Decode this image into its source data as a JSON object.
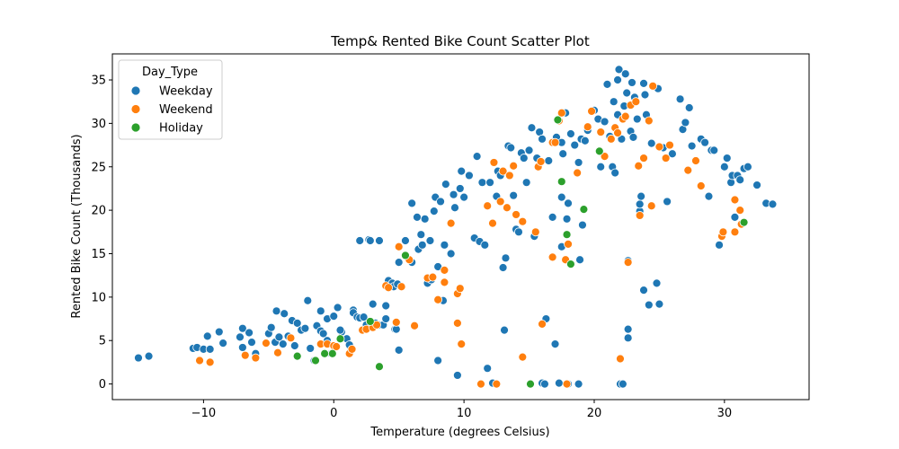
{
  "chart_data": {
    "type": "scatter",
    "title": "Temp& Rented Bike Count Scatter Plot",
    "xlabel": "Temperature (degrees Celsius)",
    "ylabel": "Rented Bike Count (Thousands)",
    "xlim": [
      -17,
      36.5
    ],
    "ylim": [
      -1.8,
      38
    ],
    "xticks": [
      -10,
      0,
      10,
      20,
      30
    ],
    "yticks": [
      0,
      5,
      10,
      15,
      20,
      25,
      30,
      35
    ],
    "grid": false,
    "legend": {
      "title": "Day_Type",
      "placement": "top-left"
    },
    "series": [
      {
        "name": "Weekday",
        "color": "#1f77b4",
        "points": [
          [
            -15,
            3
          ],
          [
            -14.2,
            3.2
          ],
          [
            -10.8,
            4.1
          ],
          [
            -10.5,
            4.2
          ],
          [
            -10,
            4
          ],
          [
            -9.7,
            5.5
          ],
          [
            -9.5,
            4
          ],
          [
            -8.8,
            6
          ],
          [
            -8.5,
            4.7
          ],
          [
            -7.2,
            5.4
          ],
          [
            -7,
            6.4
          ],
          [
            -7,
            4.2
          ],
          [
            -6.5,
            5.9
          ],
          [
            -6.3,
            4.8
          ],
          [
            -6,
            3.5
          ],
          [
            -5,
            5.8
          ],
          [
            -4.8,
            6.5
          ],
          [
            -4.5,
            4.8
          ],
          [
            -4.4,
            8.4
          ],
          [
            -4.2,
            5.4
          ],
          [
            -3.9,
            4.6
          ],
          [
            -3.8,
            8.1
          ],
          [
            -3.5,
            5.5
          ],
          [
            -3.2,
            7.3
          ],
          [
            -3,
            4.4
          ],
          [
            -2.8,
            7
          ],
          [
            -2.5,
            6.2
          ],
          [
            -2.2,
            6.4
          ],
          [
            -2,
            9.6
          ],
          [
            -1.8,
            4.1
          ],
          [
            -1.5,
            2.7
          ],
          [
            -1.3,
            6.7
          ],
          [
            -1,
            8.4
          ],
          [
            -1,
            6.1
          ],
          [
            -0.8,
            5.8
          ],
          [
            -0.5,
            5
          ],
          [
            -0.5,
            7.5
          ],
          [
            -0.2,
            3.5
          ],
          [
            0,
            7.8
          ],
          [
            0.3,
            8.8
          ],
          [
            0.6,
            6
          ],
          [
            0.5,
            6.2
          ],
          [
            1,
            5.2
          ],
          [
            1.2,
            4.5
          ],
          [
            1.5,
            8.5
          ],
          [
            1.5,
            8.2
          ],
          [
            1.8,
            7.7
          ],
          [
            2,
            7.6
          ],
          [
            2,
            16.5
          ],
          [
            2.3,
            7.7
          ],
          [
            2.5,
            6.8
          ],
          [
            2.7,
            16.6
          ],
          [
            2.8,
            16.5
          ],
          [
            3,
            9.2
          ],
          [
            3.2,
            7
          ],
          [
            3.5,
            16.5
          ],
          [
            3.5,
            6.8
          ],
          [
            3.8,
            6.8
          ],
          [
            4,
            9
          ],
          [
            4,
            7.5
          ],
          [
            4.2,
            11.9
          ],
          [
            4.3,
            11.2
          ],
          [
            4.5,
            11.6
          ],
          [
            4.6,
            11.2
          ],
          [
            4.7,
            6.3
          ],
          [
            4.8,
            6.3
          ],
          [
            4.9,
            11.5
          ],
          [
            5,
            3.9
          ],
          [
            5,
            14
          ],
          [
            5.5,
            16.5
          ],
          [
            6,
            20.8
          ],
          [
            6,
            14
          ],
          [
            6.5,
            15.5
          ],
          [
            6.4,
            19.2
          ],
          [
            6.7,
            17.2
          ],
          [
            6.8,
            16
          ],
          [
            7,
            19
          ],
          [
            7.2,
            11.6
          ],
          [
            7.4,
            16.5
          ],
          [
            7.5,
            12
          ],
          [
            7.7,
            19.9
          ],
          [
            7.8,
            21.5
          ],
          [
            8,
            13.5
          ],
          [
            8,
            2.7
          ],
          [
            8.2,
            21
          ],
          [
            8.4,
            9.6
          ],
          [
            8.5,
            16
          ],
          [
            8.6,
            23
          ],
          [
            9,
            15
          ],
          [
            9.2,
            21.8
          ],
          [
            9.3,
            20.3
          ],
          [
            9.5,
            1
          ],
          [
            9.7,
            22.5
          ],
          [
            9.8,
            24.5
          ],
          [
            10,
            21.5
          ],
          [
            10.4,
            24
          ],
          [
            10.8,
            16.8
          ],
          [
            11,
            26.2
          ],
          [
            11.2,
            16.4
          ],
          [
            11.4,
            23.2
          ],
          [
            11.6,
            16
          ],
          [
            11.8,
            1.8
          ],
          [
            12,
            23.2
          ],
          [
            12.2,
            0.1
          ],
          [
            12.5,
            21.6
          ],
          [
            12.6,
            24.5
          ],
          [
            12.8,
            24
          ],
          [
            13,
            13.4
          ],
          [
            13.1,
            6.2
          ],
          [
            13.2,
            14.5
          ],
          [
            13.4,
            27.4
          ],
          [
            13.6,
            27.2
          ],
          [
            13.8,
            21.7
          ],
          [
            14,
            17.8
          ],
          [
            14.2,
            17.5
          ],
          [
            14.4,
            26.6
          ],
          [
            14.6,
            26
          ],
          [
            14.8,
            23.2
          ],
          [
            15,
            26.9
          ],
          [
            15.2,
            29.5
          ],
          [
            15.4,
            17
          ],
          [
            15.6,
            26
          ],
          [
            15.8,
            29
          ],
          [
            16,
            28.2
          ],
          [
            16,
            0.1
          ],
          [
            16.2,
            0
          ],
          [
            16.3,
            7.5
          ],
          [
            16.5,
            25.7
          ],
          [
            16.8,
            19.2
          ],
          [
            17,
            4.6
          ],
          [
            17.1,
            28.4
          ],
          [
            17.3,
            0.1
          ],
          [
            17.5,
            21.5
          ],
          [
            17.5,
            15.8
          ],
          [
            17.5,
            27.8
          ],
          [
            17.6,
            26.5
          ],
          [
            17.8,
            31.2
          ],
          [
            17.9,
            19
          ],
          [
            18,
            20.8
          ],
          [
            18,
            0
          ],
          [
            18.2,
            28.8
          ],
          [
            18.5,
            27.5
          ],
          [
            18.8,
            0
          ],
          [
            18.8,
            25.5
          ],
          [
            18.9,
            14.3
          ],
          [
            19.1,
            18.3
          ],
          [
            19,
            28.2
          ],
          [
            19.3,
            28
          ],
          [
            19.5,
            29.2
          ],
          [
            20,
            31.5
          ],
          [
            20.3,
            30.5
          ],
          [
            20.5,
            25
          ],
          [
            20.8,
            30.2
          ],
          [
            21,
            34.5
          ],
          [
            21.2,
            28.5
          ],
          [
            21.4,
            25
          ],
          [
            21.5,
            32.5
          ],
          [
            21.6,
            24.3
          ],
          [
            21.8,
            35
          ],
          [
            21.8,
            31
          ],
          [
            21.9,
            36.2
          ],
          [
            22,
            0
          ],
          [
            22.1,
            28.2
          ],
          [
            22.2,
            0
          ],
          [
            22.3,
            32
          ],
          [
            22.4,
            35.7
          ],
          [
            22.5,
            33.5
          ],
          [
            22.6,
            14.2
          ],
          [
            22.6,
            6.3
          ],
          [
            22.6,
            5.3
          ],
          [
            22.8,
            29.1
          ],
          [
            22.9,
            34.7
          ],
          [
            23,
            28.4
          ],
          [
            23.1,
            33
          ],
          [
            23.3,
            30.5
          ],
          [
            23.5,
            19.9
          ],
          [
            23.5,
            20.7
          ],
          [
            23.6,
            21.6
          ],
          [
            23.8,
            10.8
          ],
          [
            23.8,
            34.6
          ],
          [
            23.9,
            33.3
          ],
          [
            24,
            31
          ],
          [
            24.2,
            9.1
          ],
          [
            24.4,
            27.7
          ],
          [
            24.8,
            11.6
          ],
          [
            24.9,
            34
          ],
          [
            25,
            9.2
          ],
          [
            25.3,
            27.2
          ],
          [
            25.6,
            21
          ],
          [
            26,
            26.5
          ],
          [
            26.6,
            32.8
          ],
          [
            26.8,
            29.3
          ],
          [
            27,
            30.1
          ],
          [
            27.3,
            31.8
          ],
          [
            27.5,
            27.4
          ],
          [
            28.2,
            28.2
          ],
          [
            28.5,
            27.8
          ],
          [
            28.8,
            21.6
          ],
          [
            29,
            26.9
          ],
          [
            29.2,
            26.9
          ],
          [
            29.6,
            16
          ],
          [
            30,
            25
          ],
          [
            30.2,
            26
          ],
          [
            30.5,
            23.2
          ],
          [
            30.6,
            24
          ],
          [
            30.8,
            19.2
          ],
          [
            31,
            24
          ],
          [
            31.2,
            23.5
          ],
          [
            31.5,
            24.8
          ],
          [
            31.8,
            25
          ],
          [
            32.5,
            22.9
          ],
          [
            33.2,
            20.8
          ],
          [
            33.7,
            20.7
          ]
        ]
      },
      {
        "name": "Weekend",
        "color": "#ff7f0e",
        "points": [
          [
            -10.3,
            2.7
          ],
          [
            -9.5,
            2.5
          ],
          [
            -6.8,
            3.3
          ],
          [
            -6,
            3
          ],
          [
            -5.2,
            4.7
          ],
          [
            -4.3,
            3.6
          ],
          [
            -3.3,
            5.3
          ],
          [
            -1,
            4.6
          ],
          [
            -0.5,
            4.6
          ],
          [
            0,
            4.4
          ],
          [
            0.2,
            4.3
          ],
          [
            1.2,
            3.5
          ],
          [
            1.4,
            4
          ],
          [
            2.2,
            6.2
          ],
          [
            2.5,
            6.3
          ],
          [
            3,
            6.5
          ],
          [
            3.3,
            6.8
          ],
          [
            4,
            11.3
          ],
          [
            4.2,
            11.1
          ],
          [
            4.8,
            7.1
          ],
          [
            5,
            15.8
          ],
          [
            5.2,
            11.2
          ],
          [
            5.8,
            14.3
          ],
          [
            6.2,
            6.7
          ],
          [
            7.2,
            12.2
          ],
          [
            7.6,
            12.3
          ],
          [
            8,
            9.7
          ],
          [
            8.5,
            13.1
          ],
          [
            8.5,
            11.7
          ],
          [
            9,
            18.5
          ],
          [
            9.5,
            10.4
          ],
          [
            9.5,
            7
          ],
          [
            9.7,
            11
          ],
          [
            9.8,
            4.6
          ],
          [
            11.3,
            0
          ],
          [
            11.8,
            20.5
          ],
          [
            12.2,
            18.5
          ],
          [
            12.3,
            25.5
          ],
          [
            12.5,
            0
          ],
          [
            12.8,
            21
          ],
          [
            13,
            24.5
          ],
          [
            13.3,
            20.3
          ],
          [
            13.5,
            24
          ],
          [
            13.8,
            25.1
          ],
          [
            14,
            19.5
          ],
          [
            14.5,
            18.7
          ],
          [
            14.5,
            3.1
          ],
          [
            15.5,
            17.5
          ],
          [
            15.7,
            25
          ],
          [
            15.9,
            25.6
          ],
          [
            16,
            6.9
          ],
          [
            16.8,
            27.8
          ],
          [
            16.8,
            14.6
          ],
          [
            17,
            27.8
          ],
          [
            17.3,
            30.3
          ],
          [
            17.5,
            31.2
          ],
          [
            17.8,
            14.3
          ],
          [
            18,
            16.1
          ],
          [
            17.9,
            0
          ],
          [
            18.7,
            24.3
          ],
          [
            19.5,
            29.6
          ],
          [
            19.8,
            31.4
          ],
          [
            20.5,
            29
          ],
          [
            20.8,
            26.2
          ],
          [
            21.3,
            28.2
          ],
          [
            21.6,
            29.5
          ],
          [
            21.8,
            28.9
          ],
          [
            22,
            2.9
          ],
          [
            22.2,
            30.5
          ],
          [
            22.4,
            30.8
          ],
          [
            22.8,
            32.1
          ],
          [
            22.6,
            14
          ],
          [
            23.2,
            32.5
          ],
          [
            23.4,
            25.1
          ],
          [
            23.5,
            19.4
          ],
          [
            23.8,
            26
          ],
          [
            24.2,
            30.3
          ],
          [
            24.4,
            20.5
          ],
          [
            24.5,
            34.3
          ],
          [
            25,
            27.3
          ],
          [
            25.5,
            26
          ],
          [
            25.8,
            27.5
          ],
          [
            27.2,
            24.6
          ],
          [
            27.8,
            25.7
          ],
          [
            28.2,
            22.8
          ],
          [
            29.8,
            17
          ],
          [
            29.9,
            17.5
          ],
          [
            30.8,
            17.5
          ],
          [
            30.8,
            21.2
          ],
          [
            31.2,
            20
          ],
          [
            31.3,
            18.4
          ]
        ]
      },
      {
        "name": "Holiday",
        "color": "#2ca02c",
        "points": [
          [
            -2.8,
            3.2
          ],
          [
            -1.4,
            2.7
          ],
          [
            -0.7,
            3.5
          ],
          [
            -0.1,
            3.5
          ],
          [
            0.5,
            5.2
          ],
          [
            2.8,
            7.2
          ],
          [
            3.5,
            2
          ],
          [
            5.5,
            14.8
          ],
          [
            15.1,
            0
          ],
          [
            17.2,
            30.4
          ],
          [
            17.5,
            23.3
          ],
          [
            17.9,
            17.2
          ],
          [
            18.2,
            13.8
          ],
          [
            19.2,
            20.1
          ],
          [
            20.4,
            26.8
          ],
          [
            31.5,
            18.6
          ]
        ]
      }
    ]
  }
}
